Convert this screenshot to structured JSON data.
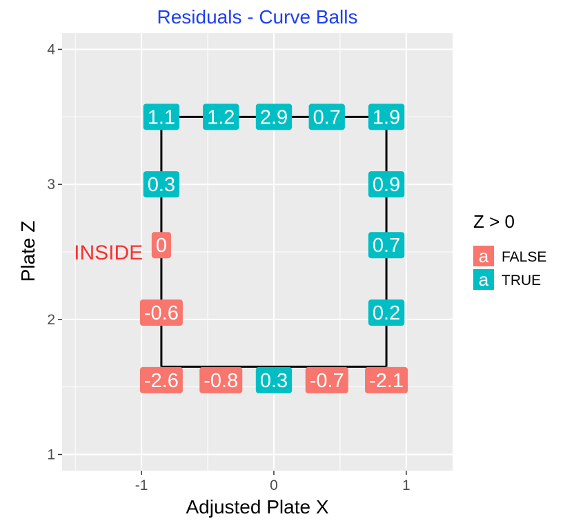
{
  "chart_data": {
    "type": "scatter",
    "title": "Residuals - Curve Balls",
    "title_color": "#1e3ff5",
    "xlabel": "Adjusted Plate X",
    "ylabel": "Plate Z",
    "xlim": [
      -1.6,
      1.35
    ],
    "ylim": [
      0.88,
      4.12
    ],
    "x_ticks": [
      -1,
      0,
      1
    ],
    "y_ticks": [
      1,
      2,
      3,
      4
    ],
    "grid": true,
    "panel_color": "#ebebeb",
    "legend": {
      "title": "Z > 0",
      "key_glyph": "a",
      "entries": [
        {
          "label": "FALSE",
          "color": "#f8766d"
        },
        {
          "label": "TRUE",
          "color": "#00bfc4"
        }
      ]
    },
    "strike_zone": {
      "x_min": -0.85,
      "x_max": 0.85,
      "z_min": 1.65,
      "z_max": 3.5
    },
    "points": [
      {
        "x": -0.85,
        "z": 3.5,
        "label": "1.1",
        "positive": true
      },
      {
        "x": -0.4,
        "z": 3.5,
        "label": "1.2",
        "positive": true
      },
      {
        "x": 0.0,
        "z": 3.5,
        "label": "2.9",
        "positive": true
      },
      {
        "x": 0.4,
        "z": 3.5,
        "label": "0.7",
        "positive": true
      },
      {
        "x": 0.85,
        "z": 3.5,
        "label": "1.9",
        "positive": true
      },
      {
        "x": -0.85,
        "z": 3.0,
        "label": "0.3",
        "positive": true
      },
      {
        "x": 0.85,
        "z": 3.0,
        "label": "0.9",
        "positive": true
      },
      {
        "x": -0.85,
        "z": 2.55,
        "label": "0",
        "positive": false
      },
      {
        "x": 0.85,
        "z": 2.55,
        "label": "0.7",
        "positive": true
      },
      {
        "x": -0.85,
        "z": 2.05,
        "label": "-0.6",
        "positive": false
      },
      {
        "x": 0.85,
        "z": 2.05,
        "label": "0.2",
        "positive": true
      },
      {
        "x": -0.85,
        "z": 1.55,
        "label": "-2.6",
        "positive": false
      },
      {
        "x": -0.4,
        "z": 1.55,
        "label": "-0.8",
        "positive": false
      },
      {
        "x": 0.0,
        "z": 1.55,
        "label": "0.3",
        "positive": true
      },
      {
        "x": 0.4,
        "z": 1.55,
        "label": "-0.7",
        "positive": false
      },
      {
        "x": 0.85,
        "z": 1.55,
        "label": "-2.1",
        "positive": false
      }
    ],
    "annotations": [
      {
        "text": "INSIDE",
        "x": -1.25,
        "z": 2.5,
        "color": "#f8312f"
      }
    ]
  }
}
